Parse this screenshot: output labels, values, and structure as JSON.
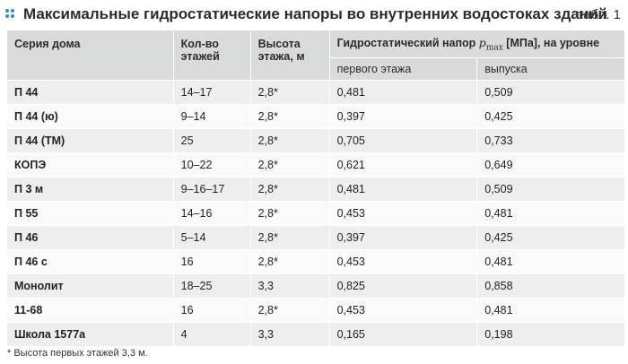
{
  "header": {
    "title": "Максимальные гидростатические напоры во внутренних водостоках зданий",
    "table_label": "табл. 1"
  },
  "table": {
    "columns": {
      "series": "Серия дома",
      "floors": "Кол-во этажей",
      "height": "Высота этажа, м",
      "pressure_prefix": "Гидростатический напор",
      "pressure_symbol": "p",
      "pressure_subscript": "max",
      "pressure_suffix": "[МПа], на уровне",
      "first_floor": "первого этажа",
      "outlet": "выпуска"
    },
    "rows": [
      {
        "series": "П 44",
        "floors": "14–17",
        "height": "2,8*",
        "first": "0,481",
        "outlet": "0,509"
      },
      {
        "series": "П 44 (ю)",
        "floors": "9–14",
        "height": "2,8*",
        "first": "0,397",
        "outlet": "0,425"
      },
      {
        "series": "П 44 (ТМ)",
        "floors": "25",
        "height": "2,8*",
        "first": "0,705",
        "outlet": "0,733"
      },
      {
        "series": "КОПЭ",
        "floors": "10–22",
        "height": "2,8*",
        "first": "0,621",
        "outlet": "0,649"
      },
      {
        "series": "П 3 м",
        "floors": "9–16–17",
        "height": "2,8*",
        "first": "0,481",
        "outlet": "0,509"
      },
      {
        "series": "П 55",
        "floors": "14–16",
        "height": "2,8*",
        "first": "0,453",
        "outlet": "0,481"
      },
      {
        "series": "П 46",
        "floors": "5–14",
        "height": "2,8*",
        "first": "0,397",
        "outlet": "0,425"
      },
      {
        "series": "П 46 с",
        "floors": "16",
        "height": "2,8*",
        "first": "0,453",
        "outlet": "0,481"
      },
      {
        "series": "Монолит",
        "floors": "18–25",
        "height": "3,3",
        "first": "0,825",
        "outlet": "0,858"
      },
      {
        "series": "11-68",
        "floors": "16",
        "height": "2,8*",
        "first": "0,453",
        "outlet": "0,481"
      },
      {
        "series": "Школа 1577а",
        "floors": "4",
        "height": "3,3",
        "first": "0,165",
        "outlet": "0,198"
      }
    ]
  },
  "footnote": "* Высота первых этажей 3,3 м.",
  "colors": {
    "accent": "#2f8fc6",
    "header_bg": "#d9dada",
    "row_odd": "#eeeeee",
    "row_even": "#fafafa"
  }
}
